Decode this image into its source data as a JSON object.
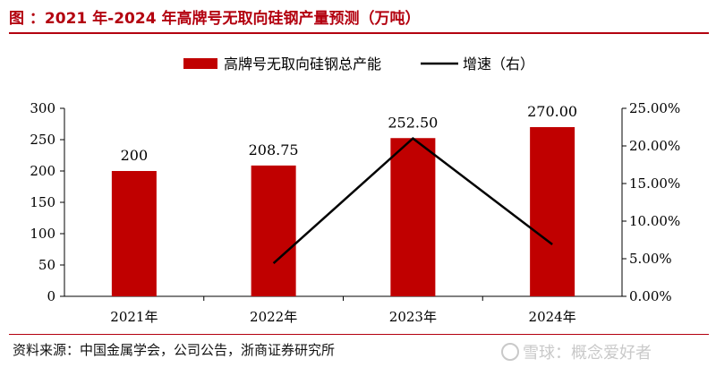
{
  "header": {
    "title": "图 ：2021 年-2024 年高牌号无取向硅钢产量预测（万吨）"
  },
  "footer": {
    "source": "资料来源：中国金属学会，公司公告，浙商证券研究所",
    "watermark": "雪球：概念爱好者"
  },
  "colors": {
    "bar": "#c00000",
    "line": "#000000",
    "accent": "#b3000f"
  },
  "icons": {
    "watermark": "snowball-logo-icon"
  },
  "chart_data": {
    "type": "bar",
    "categories": [
      "2021年",
      "2022年",
      "2023年",
      "2024年"
    ],
    "series": [
      {
        "name": "高牌号无取向硅钢总产能",
        "type": "bar",
        "axis": "left",
        "values": [
          200,
          208.75,
          252.5,
          270
        ],
        "labels": [
          "200",
          "208.75",
          "252.50",
          "270.00"
        ]
      },
      {
        "name": "增速（右）",
        "type": "line",
        "axis": "right",
        "values": [
          null,
          4.4,
          21.0,
          6.9
        ]
      }
    ],
    "y_left": {
      "ylim": [
        0,
        300
      ],
      "ticks": [
        "0",
        "50",
        "100",
        "150",
        "200",
        "250",
        "300"
      ]
    },
    "y_right": {
      "ylim": [
        0,
        25
      ],
      "unit": "%",
      "ticks": [
        "0.00%",
        "5.00%",
        "10.00%",
        "15.00%",
        "20.00%",
        "25.00%"
      ]
    },
    "legend": "top-center",
    "grid": false
  }
}
